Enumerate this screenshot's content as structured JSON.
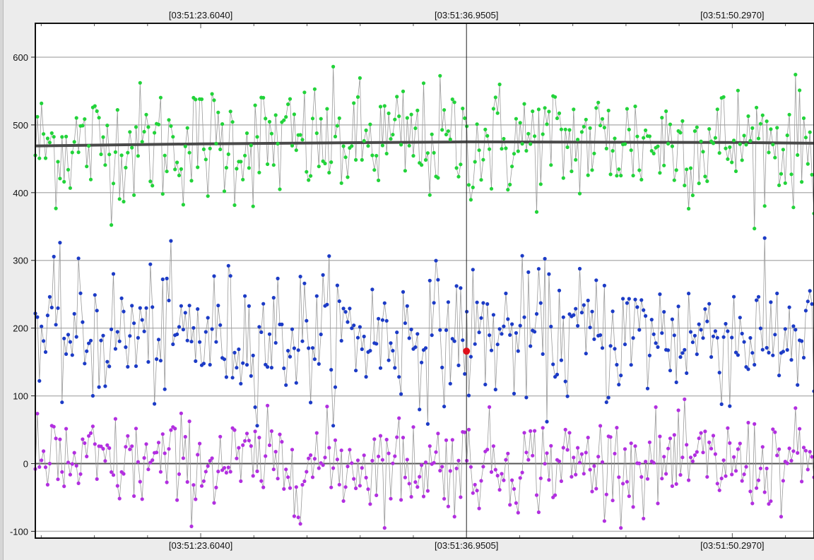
{
  "chart_data": {
    "type": "scatter",
    "title": "",
    "xlabel": "",
    "ylabel": "",
    "ylim": [
      -110,
      650
    ],
    "y_ticks": [
      -100,
      0,
      100,
      200,
      300,
      400,
      500,
      600
    ],
    "time_ticks": [
      "[03:51:23.6040]",
      "[03:51:36.9505]",
      "[03:51:50.2970]"
    ],
    "time_tick_seconds": [
      23.604,
      36.9505,
      50.297
    ],
    "x_range_seconds": [
      15.3,
      54.4
    ],
    "cursor_time_seconds": 36.9505,
    "cursor_value": 166,
    "grid": true,
    "legend": "none",
    "connected_lines": true,
    "points_per_series": 380,
    "colors": {
      "green": "#22d33a",
      "blue": "#1c3bc6",
      "purple": "#b22fe0",
      "line": "#9a9a9a",
      "mean": "#4a4a4a",
      "cursor_marker": "#e0101a",
      "grid": "#b8b8b8",
      "zero": "#555555"
    },
    "series": [
      {
        "key": "green",
        "mean_trend": [
          [
            15.3,
            469
          ],
          [
            23.604,
            472
          ],
          [
            36.9505,
            475
          ],
          [
            50.297,
            474
          ],
          [
            54.4,
            473
          ]
        ],
        "noise_sd": 45,
        "min": 347,
        "max": 608
      },
      {
        "key": "blue",
        "mean_trend": [
          [
            15.3,
            190
          ],
          [
            54.4,
            190
          ]
        ],
        "noise_sd": 50,
        "min": 56,
        "max": 333
      },
      {
        "key": "purple",
        "mean_trend": [
          [
            15.3,
            0
          ],
          [
            54.4,
            0
          ]
        ],
        "noise_sd": 35,
        "min": -95,
        "max": 95
      }
    ]
  }
}
